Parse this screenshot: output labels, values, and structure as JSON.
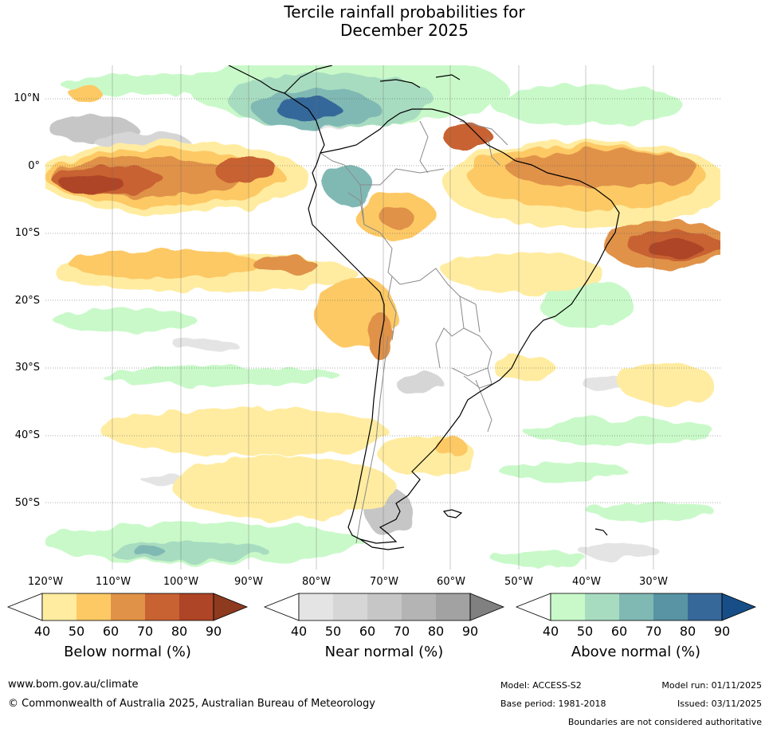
{
  "title": "Tercile rainfall probabilities for",
  "title_line2": "December 2025",
  "lat_labels": [
    "10°N",
    "0°",
    "10°S",
    "20°S",
    "30°S",
    "40°S",
    "50°S"
  ],
  "lon_labels": [
    "120°W",
    "110°W",
    "100°W",
    "90°W",
    "80°W",
    "70°W",
    "60°W",
    "50°W",
    "40°W",
    "30°W"
  ],
  "legend": {
    "below": {
      "title": "Below normal (%)",
      "colors": [
        "#ffeca0",
        "#fdc965",
        "#e09248",
        "#c86232",
        "#ad4526",
        "#8e3a1f"
      ]
    },
    "near": {
      "title": "Near normal (%)",
      "colors": [
        "#e4e4e4",
        "#d6d6d6",
        "#c6c6c6",
        "#b4b4b4",
        "#a2a2a2",
        "#808080"
      ]
    },
    "above": {
      "title": "Above normal (%)",
      "colors": [
        "#c9f9c9",
        "#a8dcc0",
        "#80b8b4",
        "#5894a4",
        "#36689a",
        "#174e87"
      ]
    },
    "ticks": [
      "40",
      "50",
      "60",
      "70",
      "80",
      "90"
    ]
  },
  "footer": {
    "website": "www.bom.gov.au/climate",
    "copyright": "© Commonwealth of Australia 2025, Australian Bureau of Meteorology",
    "model": "Model: ACCESS-S2",
    "base_period": "Base period: 1981-2018",
    "model_run": "Model run: 01/11/2025",
    "issued": "Issued: 03/11/2025",
    "disclaimer": "Boundaries are not considered authoritative"
  }
}
